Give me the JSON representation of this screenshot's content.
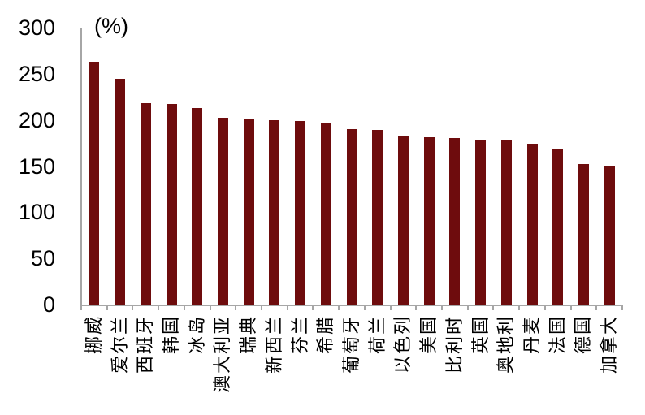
{
  "chart_data": {
    "type": "bar",
    "title": "",
    "unit_label": "(%)",
    "categories": [
      "挪威",
      "爱尔兰",
      "西班牙",
      "韩国",
      "冰岛",
      "澳大利亚",
      "瑞典",
      "新西兰",
      "芬兰",
      "希腊",
      "葡萄牙",
      "荷兰",
      "以色列",
      "美国",
      "比利时",
      "英国",
      "奥地利",
      "丹麦",
      "法国",
      "德国",
      "加拿大"
    ],
    "values": [
      263,
      245,
      218,
      217,
      213,
      202,
      201,
      200,
      199,
      196,
      190,
      189,
      183,
      181,
      180,
      179,
      178,
      174,
      169,
      152,
      150
    ],
    "xlabel": "",
    "ylabel": "",
    "ylim": [
      0,
      300
    ],
    "yticks": [
      0,
      50,
      100,
      150,
      200,
      250,
      300
    ],
    "grid": false,
    "legend": "none",
    "bar_color": "#6e0c0d",
    "axis_color": "#a6a6a6",
    "text_color": "#000000",
    "background": "#ffffff"
  }
}
